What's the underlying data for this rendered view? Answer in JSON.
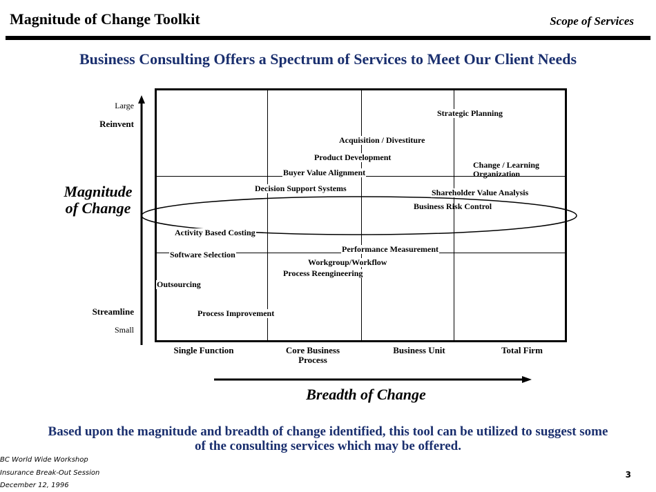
{
  "header": {
    "title": "Magnitude of Change Toolkit",
    "section": "Scope of Services"
  },
  "headline": "Business Consulting Offers a Spectrum of Services to Meet Our Client Needs",
  "y_axis": {
    "title": "Magnitude of Change",
    "top_small": "Large",
    "top_bold": "Reinvent",
    "bottom_bold": "Streamline",
    "bottom_small": "Small"
  },
  "x_axis": {
    "title": "Breadth of Change",
    "categories": [
      "Single Function",
      "Core Business Process",
      "Business Unit",
      "Total Firm"
    ]
  },
  "services": [
    "Strategic Planning",
    "Acquisition / Divestiture",
    "Product Development",
    "Change / Learning",
    "Organization",
    "Buyer Value Alignment",
    "Decision Support Systems",
    "Shareholder Value Analysis",
    "Business Risk Control",
    "Activity Based Costing",
    "Performance Measurement",
    "Software Selection",
    "Workgroup/Workflow",
    "Process Reengineering",
    "Outsourcing",
    "Process Improvement"
  ],
  "conclusion": "Based upon the magnitude and breadth of change identified, this tool can be utilized to suggest some of the consulting services which may be offered.",
  "footer": {
    "line1": "BC World Wide Workshop",
    "line2": "Insurance Break-Out Session",
    "line3": "December 12, 1996",
    "page": "3"
  }
}
